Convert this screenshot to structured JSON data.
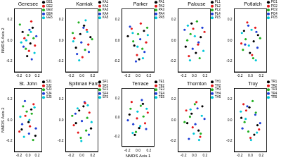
{
  "chart_data": [
    {
      "type": "scatter",
      "title": "Genesee",
      "ylabel": "NMDS Axis 2",
      "xlim": [
        -0.3,
        0.3
      ],
      "ylim": [
        -0.3,
        0.3
      ],
      "xticks": [
        -0.2,
        {
          "value": 0,
          "label": "0.0"
        },
        0.2
      ],
      "yticks": [
        -0.2,
        {
          "value": 0,
          "label": "0.0"
        },
        0.2
      ],
      "grid": false,
      "legend": "right",
      "marker": "circle",
      "series": [
        {
          "name": "GE1",
          "color": "#000000",
          "x": [
            -0.12,
            0.05,
            0.1,
            -0.02
          ],
          "y": [
            0.08,
            -0.03,
            0.12,
            -0.15
          ]
        },
        {
          "name": "GE2",
          "color": "#e41a1c",
          "x": [
            0.02,
            -0.08,
            0.15,
            0.07
          ],
          "y": [
            -0.1,
            0.02,
            -0.05,
            0.18
          ]
        },
        {
          "name": "GE3",
          "color": "#22b022",
          "x": [
            -0.18,
            0.0,
            0.12,
            -0.05
          ],
          "y": [
            0.15,
            0.05,
            0.02,
            -0.08
          ]
        },
        {
          "name": "GE4",
          "color": "#1f3fd6",
          "x": [
            0.08,
            -0.1,
            0.03,
            0.18
          ],
          "y": [
            -0.18,
            -0.06,
            0.1,
            0.04
          ]
        },
        {
          "name": "GE5",
          "color": "#00c8d8",
          "x": [
            -0.04,
            0.14,
            -0.15,
            0.06
          ],
          "y": [
            0.0,
            -0.12,
            -0.02,
            0.08
          ]
        }
      ]
    },
    {
      "type": "scatter",
      "title": "Kamiak",
      "xlim": [
        -0.3,
        0.3
      ],
      "ylim": [
        -0.3,
        0.3
      ],
      "xticks": [
        -0.2,
        {
          "value": 0,
          "label": "0.0"
        },
        0.2
      ],
      "yticks": [
        -0.2,
        {
          "value": 0,
          "label": "0.0"
        },
        0.2
      ],
      "grid": false,
      "legend": "right",
      "marker": "circle",
      "series": [
        {
          "name": "KA1",
          "color": "#000000",
          "x": [
            0.04,
            -0.11,
            0.16,
            -0.03
          ],
          "y": [
            0.14,
            -0.07,
            0.03,
            0.06
          ]
        },
        {
          "name": "KA2",
          "color": "#e41a1c",
          "x": [
            -0.14,
            0.09,
            0.01,
            0.12
          ],
          "y": [
            0.02,
            0.1,
            -0.16,
            -0.04
          ]
        },
        {
          "name": "KA3",
          "color": "#22b022",
          "x": [
            0.06,
            -0.06,
            -0.17,
            0.19
          ],
          "y": [
            -0.09,
            0.17,
            0.07,
            0.01
          ]
        },
        {
          "name": "KA4",
          "color": "#1f3fd6",
          "x": [
            -0.09,
            0.13,
            0.03,
            -0.01
          ],
          "y": [
            -0.13,
            -0.11,
            0.12,
            -0.02
          ]
        },
        {
          "name": "KA5",
          "color": "#00c8d8",
          "x": [
            0.1,
            -0.16,
            -0.05,
            0.07
          ],
          "y": [
            0.08,
            -0.01,
            -0.19,
            0.19
          ]
        }
      ]
    },
    {
      "type": "scatter",
      "title": "Parker",
      "xlim": [
        -0.3,
        0.3
      ],
      "ylim": [
        -0.3,
        0.3
      ],
      "xticks": [
        -0.2,
        {
          "value": 0,
          "label": "0.0"
        },
        0.2
      ],
      "yticks": [
        -0.2,
        {
          "value": 0,
          "label": "0.0"
        },
        0.2
      ],
      "grid": false,
      "legend": "right",
      "marker": "circle",
      "series": [
        {
          "name": "PA1",
          "color": "#000000",
          "x": [
            -0.07,
            0.11,
            0.02,
            -0.19
          ],
          "y": [
            -0.05,
            0.09,
            -0.18,
            0.04
          ]
        },
        {
          "name": "PA2",
          "color": "#e41a1c",
          "x": [
            0.15,
            -0.02,
            -0.12,
            0.05
          ],
          "y": [
            -0.02,
            -0.14,
            0.11,
            0.16
          ]
        },
        {
          "name": "PA3",
          "color": "#22b022",
          "x": [
            0.0,
            0.08,
            -0.09,
            0.17
          ],
          "y": [
            0.06,
            -0.08,
            -0.01,
            0.12
          ]
        },
        {
          "name": "PA4",
          "color": "#1f3fd6",
          "x": [
            -0.15,
            0.04,
            0.12,
            -0.04
          ],
          "y": [
            0.13,
            0.01,
            -0.11,
            -0.2
          ]
        },
        {
          "name": "PA5",
          "color": "#00c8d8",
          "x": [
            0.09,
            -0.1,
            0.18,
            -0.01
          ],
          "y": [
            -0.17,
            0.07,
            0.05,
            -0.06
          ]
        }
      ]
    },
    {
      "type": "scatter",
      "title": "Palouse",
      "xlim": [
        -0.3,
        0.3
      ],
      "ylim": [
        -0.3,
        0.3
      ],
      "xticks": [
        -0.2,
        {
          "value": 0,
          "label": "0.0"
        },
        0.2
      ],
      "yticks": [
        -0.2,
        {
          "value": 0,
          "label": "0.0"
        },
        0.2
      ],
      "grid": false,
      "legend": "right",
      "marker": "circle",
      "series": [
        {
          "name": "PL1",
          "color": "#000000",
          "x": [
            0.12,
            -0.05,
            -0.16,
            0.03
          ],
          "y": [
            0.03,
            0.16,
            -0.06,
            -0.12
          ]
        },
        {
          "name": "PL2",
          "color": "#e41a1c",
          "x": [
            -0.1,
            0.07,
            0.19,
            -0.02
          ],
          "y": [
            -0.15,
            -0.04,
            0.08,
            0.11
          ]
        },
        {
          "name": "PL3",
          "color": "#22b022",
          "x": [
            0.05,
            -0.13,
            0.1,
            -0.07
          ],
          "y": [
            0.18,
            0.0,
            -0.17,
            0.06
          ]
        },
        {
          "name": "PL4",
          "color": "#1f3fd6",
          "x": [
            -0.03,
            0.15,
            -0.18,
            0.08
          ],
          "y": [
            -0.08,
            0.12,
            0.1,
            -0.02
          ]
        },
        {
          "name": "PL5",
          "color": "#00c8d8",
          "x": [
            0.17,
            -0.08,
            0.01,
            -0.12
          ],
          "y": [
            -0.1,
            -0.19,
            0.04,
            0.14
          ]
        }
      ]
    },
    {
      "type": "scatter",
      "title": "Potlatch",
      "xlim": [
        -0.3,
        0.3
      ],
      "ylim": [
        -0.3,
        0.3
      ],
      "xticks": [
        -0.2,
        {
          "value": 0,
          "label": "0.0"
        },
        0.2
      ],
      "yticks": [
        -0.2,
        {
          "value": 0,
          "label": "0.0"
        },
        0.2
      ],
      "grid": false,
      "legend": "right",
      "marker": "circle",
      "series": [
        {
          "name": "PO1",
          "color": "#000000",
          "x": [
            -0.01,
            0.14,
            -0.12,
            0.06
          ],
          "y": [
            -0.12,
            0.05,
            0.09,
            -0.01
          ]
        },
        {
          "name": "PO2",
          "color": "#e41a1c",
          "x": [
            0.09,
            -0.17,
            0.03,
            -0.06
          ],
          "y": [
            0.12,
            -0.03,
            -0.14,
            0.17
          ]
        },
        {
          "name": "PO3",
          "color": "#22b022",
          "x": [
            -0.09,
            0.05,
            0.18,
            -0.14
          ],
          "y": [
            0.01,
            -0.17,
            0.02,
            -0.09
          ]
        },
        {
          "name": "PO4",
          "color": "#1f3fd6",
          "x": [
            0.13,
            -0.04,
            -0.1,
            0.11
          ],
          "y": [
            -0.07,
            0.14,
            -0.04,
            0.08
          ]
        },
        {
          "name": "PO5",
          "color": "#00c8d8",
          "x": [
            -0.16,
            0.02,
            0.1,
            -0.03
          ],
          "y": [
            0.07,
            0.1,
            -0.19,
            -0.05
          ]
        }
      ]
    },
    {
      "type": "scatter",
      "title": "St. John",
      "ylabel": "NMDS Axis 2",
      "xlim": [
        -0.3,
        0.3
      ],
      "ylim": [
        -0.3,
        0.3
      ],
      "xticks": [
        -0.2,
        {
          "value": 0,
          "label": "0.0"
        },
        0.2
      ],
      "yticks": [
        -0.2,
        {
          "value": 0,
          "label": "0.0"
        },
        0.2
      ],
      "grid": false,
      "legend": "right",
      "marker": "circle",
      "series": [
        {
          "name": "SJ1",
          "color": "#000000",
          "x": [
            0.07,
            -0.14,
            0.01,
            0.16
          ],
          "y": [
            0.1,
            -0.09,
            -0.02,
            -0.15
          ]
        },
        {
          "name": "SJ2",
          "color": "#e41a1c",
          "x": [
            -0.06,
            0.12,
            -0.19,
            0.04
          ],
          "y": [
            0.04,
            0.15,
            -0.11,
            -0.06
          ]
        },
        {
          "name": "SJ3",
          "color": "#22b022",
          "x": [
            0.11,
            -0.03,
            0.08,
            -0.11
          ],
          "y": [
            -0.19,
            0.08,
            0.06,
            0.13
          ]
        },
        {
          "name": "SJ4",
          "color": "#1f3fd6",
          "x": [
            -0.13,
            0.17,
            -0.07,
            0.02
          ],
          "y": [
            -0.04,
            -0.08,
            0.18,
            -0.13
          ]
        },
        {
          "name": "SJ5",
          "color": "#00c8d8",
          "x": [
            0.03,
            -0.09,
            0.14,
            -0.17
          ],
          "y": [
            0.0,
            -0.16,
            0.12,
            0.03
          ]
        }
      ]
    },
    {
      "type": "scatter",
      "title": "Spillman Farm",
      "xlim": [
        -0.3,
        0.3
      ],
      "ylim": [
        -0.3,
        0.3
      ],
      "xticks": [
        -0.2,
        {
          "value": 0,
          "label": "0.0"
        },
        0.2
      ],
      "yticks": [
        -0.2,
        {
          "value": 0,
          "label": "0.0"
        },
        0.2
      ],
      "grid": false,
      "legend": "right",
      "marker": "circle",
      "series": [
        {
          "name": "SF1",
          "color": "#000000",
          "x": [
            -0.11,
            0.03,
            0.17,
            -0.05
          ],
          "y": [
            -0.03,
            0.13,
            -0.08,
            0.09
          ]
        },
        {
          "name": "SF2",
          "color": "#e41a1c",
          "x": [
            0.14,
            -0.07,
            0.06,
            -0.15
          ],
          "y": [
            0.07,
            -0.12,
            0.16,
            -0.05
          ]
        },
        {
          "name": "SF3",
          "color": "#22b022",
          "x": [
            -0.02,
            0.1,
            -0.18,
            0.08
          ],
          "y": [
            -0.17,
            0.02,
            0.04,
            -0.1
          ]
        },
        {
          "name": "SF4",
          "color": "#1f3fd6",
          "x": [
            0.05,
            -0.12,
            0.13,
            0.0
          ],
          "y": [
            0.17,
            0.06,
            -0.14,
            -0.01
          ]
        },
        {
          "name": "SF5",
          "color": "#00c8d8",
          "x": [
            -0.08,
            0.18,
            -0.01,
            0.11
          ],
          "y": [
            0.11,
            -0.02,
            -0.2,
            0.14
          ]
        }
      ]
    },
    {
      "type": "scatter",
      "title": "Terrace",
      "xlabel": "NMDS Axis 1",
      "xlim": [
        -0.3,
        0.3
      ],
      "ylim": [
        -0.3,
        0.3
      ],
      "xticks": [
        -0.2,
        {
          "value": 0,
          "label": "0.0"
        },
        0.2
      ],
      "yticks": [
        -0.2,
        {
          "value": 0,
          "label": "0.0"
        },
        0.2
      ],
      "grid": false,
      "legend": "right",
      "marker": "circle",
      "series": [
        {
          "name": "TE1",
          "color": "#000000",
          "x": [
            0.02,
            -0.16,
            0.09,
            -0.06
          ],
          "y": [
            -0.11,
            0.03,
            0.14,
            -0.18
          ]
        },
        {
          "name": "TE2",
          "color": "#e41a1c",
          "x": [
            -0.12,
            0.13,
            -0.02,
            0.18
          ],
          "y": [
            0.16,
            -0.06,
            -0.01,
            0.05
          ]
        },
        {
          "name": "TE3",
          "color": "#22b022",
          "x": [
            0.1,
            -0.04,
            -0.14,
            0.05
          ],
          "y": [
            0.01,
            -0.15,
            0.09,
            0.12
          ]
        },
        {
          "name": "TE4",
          "color": "#1f3fd6",
          "x": [
            -0.09,
            0.07,
            0.15,
            -0.19
          ],
          "y": [
            -0.07,
            0.18,
            -0.12,
            -0.03
          ]
        },
        {
          "name": "TE5",
          "color": "#00c8d8",
          "x": [
            0.16,
            -0.01,
            -0.1,
            0.04
          ],
          "y": [
            0.09,
            0.06,
            -0.16,
            -0.09
          ]
        }
      ]
    },
    {
      "type": "scatter",
      "title": "Thornton",
      "xlim": [
        -0.3,
        0.3
      ],
      "ylim": [
        -0.3,
        0.3
      ],
      "xticks": [
        -0.2,
        {
          "value": 0,
          "label": "0.0"
        },
        0.2
      ],
      "yticks": [
        -0.2,
        {
          "value": 0,
          "label": "0.0"
        },
        0.2
      ],
      "grid": false,
      "legend": "right",
      "marker": "circle",
      "series": [
        {
          "name": "TH1",
          "color": "#000000",
          "x": [
            -0.05,
            0.08,
            -0.13,
            0.15
          ],
          "y": [
            0.06,
            -0.1,
            -0.03,
            0.13
          ]
        },
        {
          "name": "TH2",
          "color": "#e41a1c",
          "x": [
            0.11,
            -0.15,
            0.04,
            -0.03
          ],
          "y": [
            -0.16,
            0.09,
            0.17,
            -0.07
          ]
        },
        {
          "name": "TH3",
          "color": "#22b022",
          "x": [
            -0.18,
            0.01,
            0.12,
            -0.08
          ],
          "y": [
            -0.02,
            0.15,
            -0.13,
            0.03
          ]
        },
        {
          "name": "TH4",
          "color": "#1f3fd6",
          "x": [
            0.06,
            -0.1,
            0.19,
            0.02
          ],
          "y": [
            0.11,
            -0.18,
            0.01,
            -0.04
          ]
        },
        {
          "name": "TH5",
          "color": "#00c8d8",
          "x": [
            -0.01,
            0.14,
            -0.07,
            0.09
          ],
          "y": [
            -0.13,
            0.04,
            0.1,
            -0.19
          ]
        }
      ]
    },
    {
      "type": "scatter",
      "title": "Troy",
      "xlim": [
        -0.3,
        0.3
      ],
      "ylim": [
        -0.3,
        0.3
      ],
      "xticks": [
        -0.2,
        {
          "value": 0,
          "label": "0.0"
        },
        0.2
      ],
      "yticks": [
        -0.2,
        {
          "value": 0,
          "label": "0.0"
        },
        0.2
      ],
      "grid": false,
      "legend": "right",
      "marker": "circle",
      "series": [
        {
          "name": "TR1",
          "color": "#000000",
          "x": [
            0.13,
            -0.02,
            -0.17,
            0.07
          ],
          "y": [
            -0.05,
            0.12,
            0.02,
            -0.14
          ]
        },
        {
          "name": "TR2",
          "color": "#e41a1c",
          "x": [
            -0.08,
            0.16,
            0.0,
            -0.13
          ],
          "y": [
            0.09,
            -0.09,
            -0.17,
            0.15
          ]
        },
        {
          "name": "TR3",
          "color": "#22b022",
          "x": [
            0.04,
            -0.11,
            0.1,
            -0.04
          ],
          "y": [
            0.18,
            -0.02,
            0.07,
            -0.11
          ]
        },
        {
          "name": "TR4",
          "color": "#1f3fd6",
          "x": [
            -0.15,
            0.09,
            -0.06,
            0.18
          ],
          "y": [
            -0.08,
            0.05,
            0.13,
            -0.03
          ]
        },
        {
          "name": "TR5",
          "color": "#00c8d8",
          "x": [
            0.01,
            -0.18,
            0.12,
            -0.09
          ],
          "y": [
            -0.19,
            0.08,
            -0.12,
            0.01
          ]
        }
      ]
    }
  ]
}
